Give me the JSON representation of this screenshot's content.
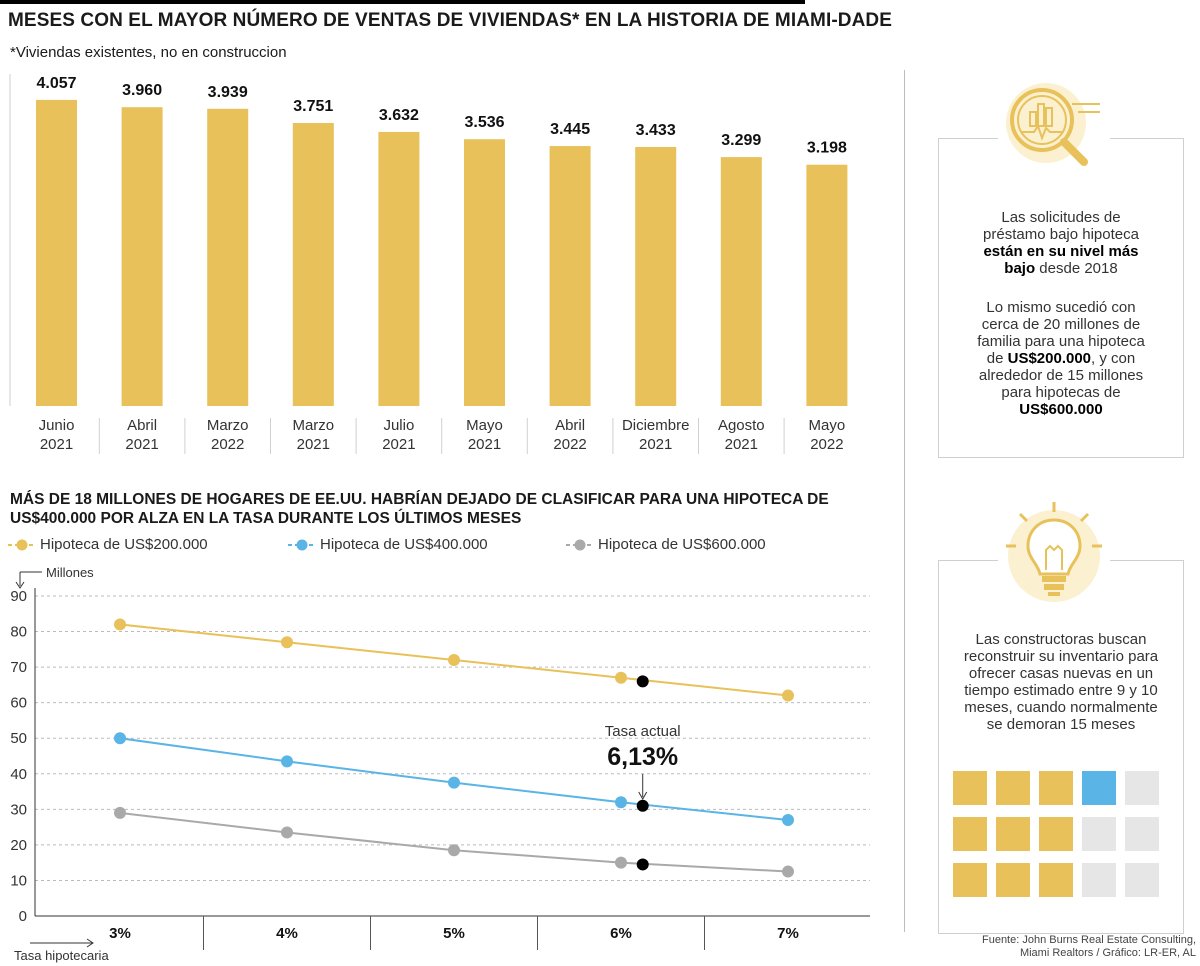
{
  "bar_chart": {
    "title": "MESES CON EL MAYOR NÚMERO DE VENTAS DE VIVIENDAS* EN LA HISTORIA DE MIAMI-DADE",
    "subtitle": "*Viviendas existentes, no en construccion",
    "color": "#e8c15a"
  },
  "line_chart": {
    "title": "MÁS DE 18 MILLONES DE HOGARES DE EE.UU. HABRÍAN DEJADO DE CLASIFICAR PARA UNA HIPOTECA DE US$400.000 POR ALZA EN LA TASA DURANTE LOS ÚLTIMOS MESES",
    "y_unit": "Millones",
    "x_unit": "Tasa hipotecaria",
    "annotation_label": "Tasa actual",
    "annotation_value": "6,13%",
    "current_rate": 6.13,
    "current_marker_color": "#000000"
  },
  "chart_data": [
    {
      "type": "bar",
      "title": "MESES CON EL MAYOR NÚMERO DE VENTAS DE VIVIENDAS* EN LA HISTORIA DE MIAMI-DADE",
      "categories": [
        [
          "Junio",
          "2021"
        ],
        [
          "Abril",
          "2021"
        ],
        [
          "Marzo",
          "2022"
        ],
        [
          "Marzo",
          "2021"
        ],
        [
          "Julio",
          "2021"
        ],
        [
          "Mayo",
          "2021"
        ],
        [
          "Abril",
          "2022"
        ],
        [
          "Diciembre",
          "2021"
        ],
        [
          "Agosto",
          "2021"
        ],
        [
          "Mayo",
          "2022"
        ]
      ],
      "values": [
        4057,
        3960,
        3939,
        3751,
        3632,
        3536,
        3445,
        3433,
        3299,
        3198
      ],
      "value_labels": [
        "4.057",
        "3.960",
        "3.939",
        "3.751",
        "3.632",
        "3.536",
        "3.445",
        "3.433",
        "3.299",
        "3.198"
      ],
      "ylim": [
        0,
        4400
      ]
    },
    {
      "type": "line",
      "x": [
        3,
        4,
        5,
        6,
        7
      ],
      "x_tick_labels": [
        "3%",
        "4%",
        "5%",
        "6%",
        "7%"
      ],
      "y_ticks": [
        0,
        10,
        20,
        30,
        40,
        50,
        60,
        70,
        80,
        90
      ],
      "ylim": [
        0,
        90
      ],
      "grid": true,
      "series": [
        {
          "name": "Hipoteca de US$200.000",
          "color": "#e8c15a",
          "values": [
            82,
            77,
            72,
            67,
            62
          ],
          "current": 66
        },
        {
          "name": "Hipoteca de US$400.000",
          "color": "#5ab4e5",
          "values": [
            50,
            43.5,
            37.5,
            32,
            27
          ],
          "current": 31
        },
        {
          "name": "Hipoteca de US$600.000",
          "color": "#a9a9a9",
          "values": [
            29,
            23.5,
            18.5,
            15,
            12.5
          ],
          "current": 14.5
        }
      ]
    }
  ],
  "side_panel": {
    "box1": {
      "p1_a": "Las solicitudes de préstamo bajo hipoteca ",
      "p1_b": "están en su nivel más bajo",
      "p1_c": " desde 2018",
      "p2_a": "Lo mismo sucedió con cerca de 20 millones de familia para una hipoteca de ",
      "p2_b": "US$200.000",
      "p2_c": ", y con alrededor de 15 millones para hipotecas de ",
      "p2_d": "US$600.000",
      "icon": "magnifier-chart-icon"
    },
    "box2": {
      "text": "Las constructoras buscan reconstruir su inventario para ofrecer casas nuevas en un tiempo estimado entre 9 y 10 meses, cuando normalmente se demoran 15 meses",
      "icon": "lightbulb-icon",
      "months_total": 15,
      "months_estimated": 9,
      "months_partial": 1,
      "colors": {
        "filled": "#e8c15a",
        "partial": "#5ab4e5",
        "empty": "#e6e6e6"
      }
    }
  },
  "source": {
    "line1": "Fuente: John Burns Real Estate Consulting,",
    "line2": "Miami Realtors / Gráfico: LR-ER, AL"
  }
}
